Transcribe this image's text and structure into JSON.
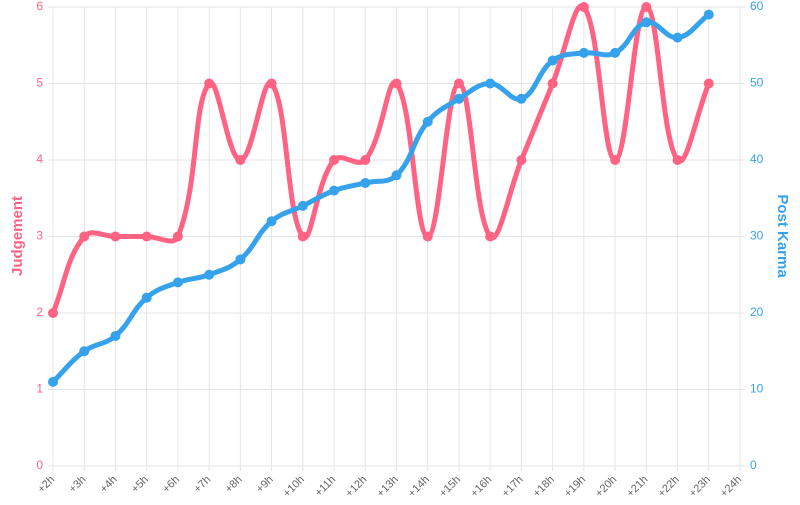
{
  "chart_data": {
    "type": "line",
    "categories": [
      "+2h",
      "+3h",
      "+4h",
      "+5h",
      "+6h",
      "+7h",
      "+8h",
      "+9h",
      "+10h",
      "+11h",
      "+12h",
      "+13h",
      "+14h",
      "+15h",
      "+16h",
      "+17h",
      "+18h",
      "+19h",
      "+20h",
      "+21h",
      "+22h",
      "+23h",
      "+24h"
    ],
    "series": [
      {
        "name": "Judgement",
        "color": "#ff6384",
        "values": [
          2,
          3,
          3,
          3,
          3,
          5,
          4,
          5,
          3,
          4,
          4,
          5,
          3,
          5,
          3,
          4,
          5,
          6,
          4,
          6,
          4,
          5,
          null
        ]
      },
      {
        "name": "Post Karma",
        "color": "#36a2eb",
        "axis": "y2",
        "values": [
          11,
          15,
          17,
          22,
          24,
          25,
          27,
          32,
          34,
          36,
          37,
          38,
          45,
          48,
          50,
          48,
          53,
          54,
          54,
          58,
          56,
          59,
          null
        ]
      }
    ],
    "ylabel": "Judgement",
    "y2label": "Post Karma",
    "ylim": [
      0,
      6
    ],
    "yticks": [
      0,
      1,
      2,
      3,
      4,
      5,
      6
    ],
    "y2lim": [
      0,
      60
    ],
    "y2ticks": [
      0,
      10,
      20,
      30,
      40,
      50,
      60
    ],
    "grid": true
  }
}
